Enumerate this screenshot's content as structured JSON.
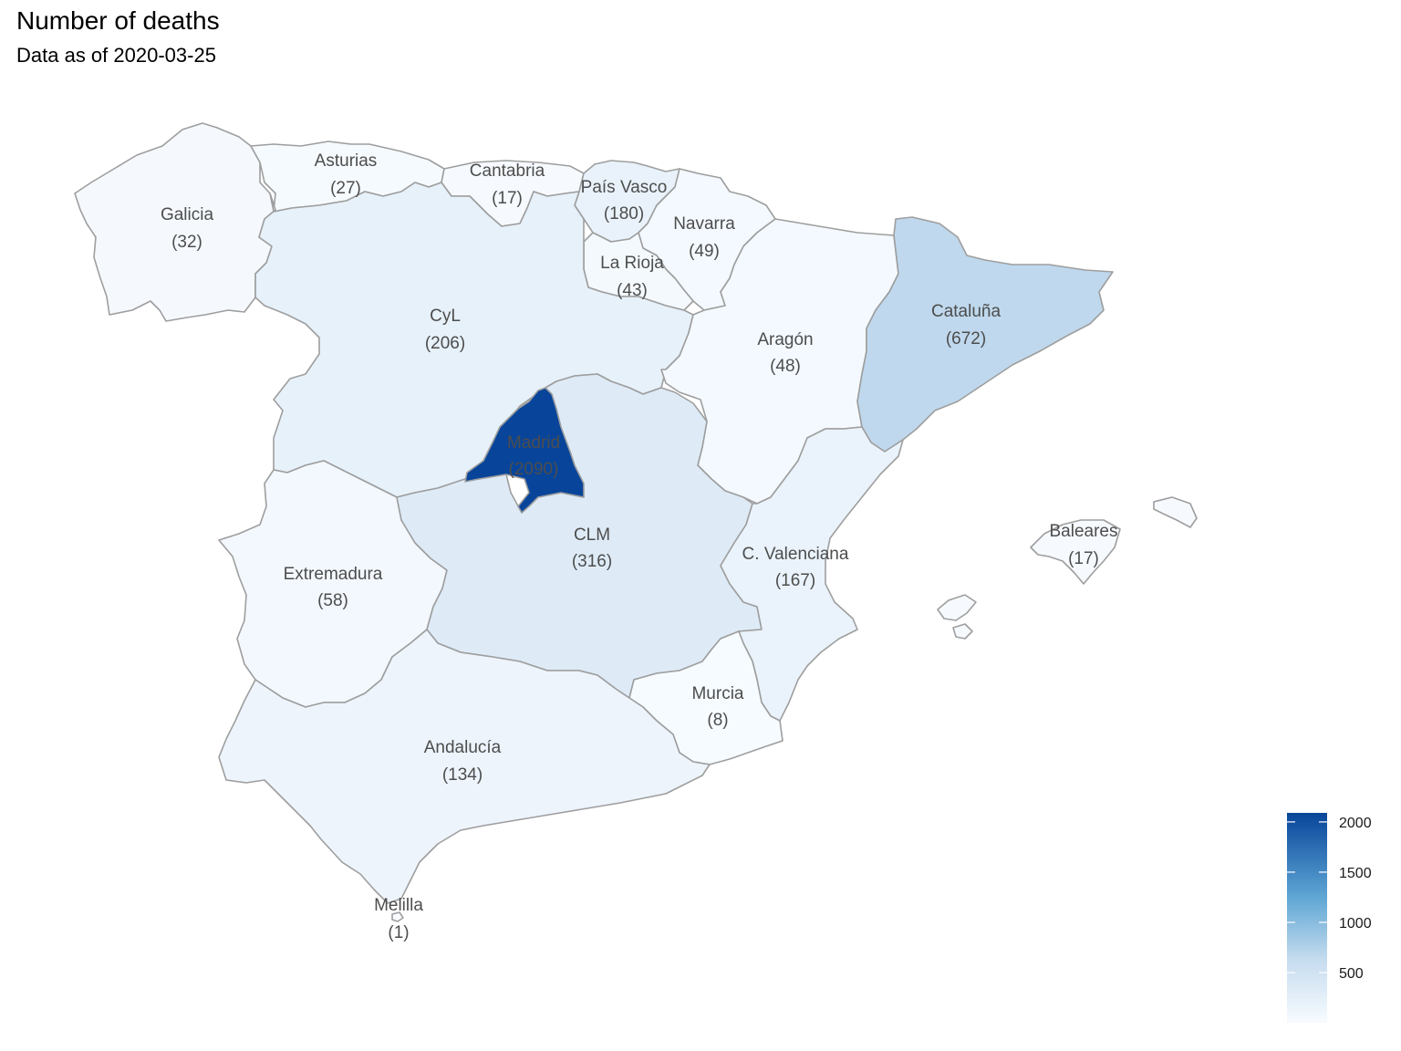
{
  "title": "Number of deaths",
  "subtitle": "Data as of 2020-03-25",
  "color_scale": {
    "low": "#f7fbff",
    "high": "#08459a",
    "min": 1,
    "max": 2090
  },
  "chart_data": {
    "type": "choropleth",
    "title": "Number of deaths",
    "subtitle": "Data as of 2020-03-25",
    "regions": [
      {
        "id": "galicia",
        "name": "Galicia",
        "value": 32,
        "label": "(32)"
      },
      {
        "id": "asturias",
        "name": "Asturias",
        "value": 27,
        "label": "(27)"
      },
      {
        "id": "cantabria",
        "name": "Cantabria",
        "value": 17,
        "label": "(17)"
      },
      {
        "id": "pais-vasco",
        "name": "País Vasco",
        "value": 180,
        "label": "(180)"
      },
      {
        "id": "navarra",
        "name": "Navarra",
        "value": 49,
        "label": "(49)"
      },
      {
        "id": "la-rioja",
        "name": "La Rioja",
        "value": 43,
        "label": "(43)"
      },
      {
        "id": "cyl",
        "name": "CyL",
        "value": 206,
        "label": "(206)"
      },
      {
        "id": "aragon",
        "name": "Aragón",
        "value": 48,
        "label": "(48)"
      },
      {
        "id": "cataluna",
        "name": "Cataluña",
        "value": 672,
        "label": "(672)"
      },
      {
        "id": "madrid",
        "name": "Madrid",
        "value": 2090,
        "label": "(2090)"
      },
      {
        "id": "clm",
        "name": "CLM",
        "value": 316,
        "label": "(316)"
      },
      {
        "id": "extremadura",
        "name": "Extremadura",
        "value": 58,
        "label": "(58)"
      },
      {
        "id": "c-valenciana",
        "name": "C. Valenciana",
        "value": 167,
        "label": "(167)"
      },
      {
        "id": "baleares",
        "name": "Baleares",
        "value": 17,
        "label": "(17)"
      },
      {
        "id": "murcia",
        "name": "Murcia",
        "value": 8,
        "label": "(8)"
      },
      {
        "id": "andalucia",
        "name": "Andalucía",
        "value": 134,
        "label": "(134)"
      },
      {
        "id": "melilla",
        "name": "Melilla",
        "value": 1,
        "label": "(1)"
      }
    ],
    "legend": {
      "ticks": [
        "500",
        "1000",
        "1500",
        "2000"
      ],
      "tick_values": [
        500,
        1000,
        1500,
        2000
      ],
      "placement": "bottom-right"
    }
  }
}
